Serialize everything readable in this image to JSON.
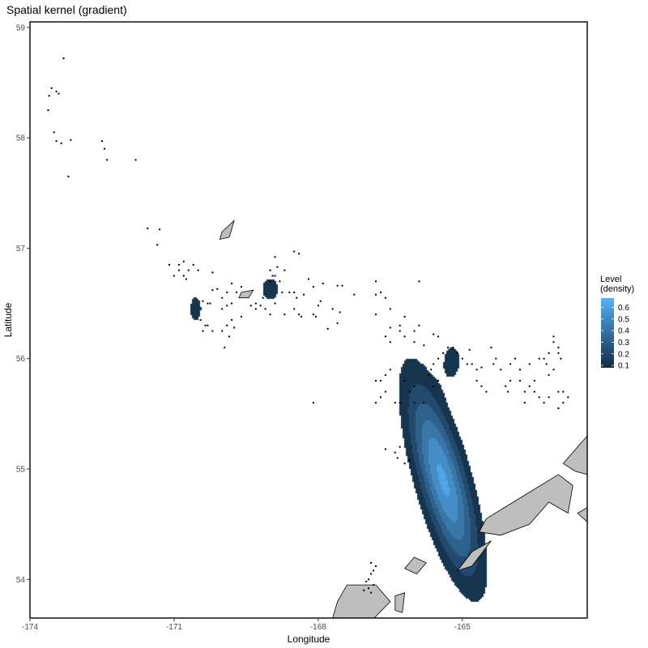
{
  "chart_data": {
    "type": "heatmap",
    "title": "Spatial kernel (gradient)",
    "xlabel": "Longitude",
    "ylabel": "Latitude",
    "xlim": [
      -174,
      -162.4
    ],
    "ylim": [
      53.65,
      59.05
    ],
    "x_ticks": [
      -174,
      -171,
      -168,
      -165
    ],
    "x_tick_labels": [
      "-174",
      "-171",
      "-168",
      "-165"
    ],
    "y_ticks": [
      54,
      55,
      56,
      57,
      58,
      59
    ],
    "y_tick_labels": [
      "54",
      "55",
      "56",
      "57",
      "58",
      "59"
    ],
    "grid": false,
    "legend": {
      "title_lines": [
        "Level",
        "(density)"
      ],
      "placement": "right",
      "levels": [
        0.1,
        0.2,
        0.3,
        0.4,
        0.5,
        0.6
      ],
      "level_labels": [
        "0.1",
        "0.2",
        "0.3",
        "0.4",
        "0.5",
        "0.6"
      ],
      "range": [
        0.08,
        0.68
      ]
    },
    "colors": {
      "low": "#132B43",
      "high": "#56B1F7",
      "land": "#bebebe",
      "points": "#000000"
    },
    "kernel_hotspots": [
      {
        "lon": -170.55,
        "lat": 56.45,
        "sx": 0.15,
        "sy": 0.14,
        "peak": 0.13
      },
      {
        "lon": -169.0,
        "lat": 56.63,
        "sx": 0.22,
        "sy": 0.13,
        "peak": 0.13
      },
      {
        "lon": -165.2,
        "lat": 55.98,
        "sx": 0.2,
        "sy": 0.16,
        "peak": 0.13
      },
      {
        "lon": -165.4,
        "lat": 54.9,
        "sx": 0.55,
        "sy": 0.52,
        "peak": 0.62,
        "rotation_deg": -38
      }
    ],
    "land_polygons": [
      [
        [
          -170.0,
          57.15
        ],
        [
          -169.75,
          57.25
        ],
        [
          -169.85,
          57.1
        ],
        [
          -170.05,
          57.08
        ]
      ],
      [
        [
          -169.6,
          56.6
        ],
        [
          -169.35,
          56.62
        ],
        [
          -169.45,
          56.55
        ],
        [
          -169.65,
          56.55
        ]
      ],
      [
        [
          -164.5,
          54.55
        ],
        [
          -163.0,
          54.95
        ],
        [
          -162.7,
          54.85
        ],
        [
          -162.8,
          54.6
        ],
        [
          -163.2,
          54.7
        ],
        [
          -163.6,
          54.5
        ],
        [
          -164.2,
          54.4
        ],
        [
          -164.65,
          54.43
        ]
      ],
      [
        [
          -162.9,
          55.05
        ],
        [
          -162.6,
          55.2
        ],
        [
          -162.4,
          55.3
        ],
        [
          -162.4,
          54.95
        ],
        [
          -162.65,
          54.98
        ]
      ],
      [
        [
          -164.8,
          54.25
        ],
        [
          -164.4,
          54.35
        ],
        [
          -164.8,
          54.12
        ],
        [
          -165.1,
          54.08
        ]
      ],
      [
        [
          -166.0,
          54.2
        ],
        [
          -165.75,
          54.15
        ],
        [
          -165.95,
          54.05
        ],
        [
          -166.2,
          54.1
        ]
      ],
      [
        [
          -167.4,
          53.95
        ],
        [
          -166.8,
          53.95
        ],
        [
          -166.5,
          53.8
        ],
        [
          -166.9,
          53.62
        ],
        [
          -167.7,
          53.65
        ],
        [
          -167.6,
          53.8
        ]
      ],
      [
        [
          -166.4,
          53.85
        ],
        [
          -166.2,
          53.88
        ],
        [
          -166.25,
          53.7
        ],
        [
          -166.4,
          53.72
        ]
      ],
      [
        [
          -162.6,
          54.6
        ],
        [
          -162.4,
          54.65
        ],
        [
          -162.4,
          54.52
        ]
      ]
    ],
    "points": [
      [
        -173.3,
        58.72
      ],
      [
        -173.55,
        58.45
      ],
      [
        -173.45,
        58.42
      ],
      [
        -173.4,
        58.4
      ],
      [
        -173.6,
        58.38
      ],
      [
        -173.62,
        58.25
      ],
      [
        -173.5,
        58.05
      ],
      [
        -173.45,
        57.97
      ],
      [
        -173.35,
        57.95
      ],
      [
        -173.15,
        57.98
      ],
      [
        -172.5,
        57.97
      ],
      [
        -172.45,
        57.9
      ],
      [
        -172.4,
        57.8
      ],
      [
        -171.8,
        57.8
      ],
      [
        -173.2,
        57.65
      ],
      [
        -171.55,
        57.18
      ],
      [
        -171.3,
        57.17
      ],
      [
        -171.35,
        57.03
      ],
      [
        -171.1,
        56.85
      ],
      [
        -170.9,
        56.85
      ],
      [
        -170.8,
        56.88
      ],
      [
        -170.6,
        56.85
      ],
      [
        -170.9,
        56.8
      ],
      [
        -170.7,
        56.8
      ],
      [
        -170.8,
        56.75
      ],
      [
        -171.0,
        56.75
      ],
      [
        -170.75,
        56.72
      ],
      [
        -170.5,
        56.8
      ],
      [
        -170.2,
        56.78
      ],
      [
        -170.2,
        56.62
      ],
      [
        -170.1,
        56.63
      ],
      [
        -170.0,
        56.55
      ],
      [
        -169.9,
        56.6
      ],
      [
        -169.8,
        56.68
      ],
      [
        -169.7,
        56.6
      ],
      [
        -169.6,
        56.65
      ],
      [
        -170.25,
        56.5
      ],
      [
        -170.4,
        56.52
      ],
      [
        -170.3,
        56.5
      ],
      [
        -169.9,
        56.48
      ],
      [
        -169.8,
        56.5
      ],
      [
        -170.0,
        56.45
      ],
      [
        -169.8,
        56.35
      ],
      [
        -169.9,
        56.3
      ],
      [
        -169.75,
        56.28
      ],
      [
        -170.45,
        56.35
      ],
      [
        -170.3,
        56.3
      ],
      [
        -170.4,
        56.25
      ],
      [
        -170.35,
        56.3
      ],
      [
        -170.2,
        56.25
      ],
      [
        -170.0,
        56.25
      ],
      [
        -169.85,
        56.2
      ],
      [
        -169.95,
        56.1
      ],
      [
        -169.6,
        56.38
      ],
      [
        -169.4,
        56.48
      ],
      [
        -169.3,
        56.5
      ],
      [
        -169.2,
        56.48
      ],
      [
        -169.1,
        56.45
      ],
      [
        -169.15,
        56.55
      ],
      [
        -169.3,
        56.45
      ],
      [
        -169.0,
        56.8
      ],
      [
        -168.95,
        56.75
      ],
      [
        -168.9,
        56.75
      ],
      [
        -168.85,
        56.83
      ],
      [
        -168.7,
        56.8
      ],
      [
        -168.8,
        56.7
      ],
      [
        -169.0,
        56.7
      ],
      [
        -168.9,
        56.92
      ],
      [
        -168.5,
        56.97
      ],
      [
        -168.4,
        56.95
      ],
      [
        -168.75,
        56.6
      ],
      [
        -168.6,
        56.6
      ],
      [
        -168.5,
        56.6
      ],
      [
        -168.45,
        56.55
      ],
      [
        -168.5,
        56.45
      ],
      [
        -168.7,
        56.4
      ],
      [
        -168.9,
        56.5
      ],
      [
        -169.0,
        56.4
      ],
      [
        -168.4,
        56.4
      ],
      [
        -168.35,
        56.38
      ],
      [
        -168.1,
        56.4
      ],
      [
        -168.05,
        56.38
      ],
      [
        -168.0,
        56.48
      ],
      [
        -167.95,
        56.52
      ],
      [
        -168.3,
        56.58
      ],
      [
        -168.2,
        56.72
      ],
      [
        -168.1,
        56.65
      ],
      [
        -167.9,
        56.68
      ],
      [
        -167.6,
        56.66
      ],
      [
        -167.5,
        56.66
      ],
      [
        -167.55,
        56.42
      ],
      [
        -167.7,
        56.45
      ],
      [
        -167.6,
        56.32
      ],
      [
        -167.8,
        56.27
      ],
      [
        -167.25,
        56.58
      ],
      [
        -166.8,
        56.7
      ],
      [
        -166.7,
        56.6
      ],
      [
        -166.8,
        56.58
      ],
      [
        -166.6,
        56.55
      ],
      [
        -166.5,
        56.45
      ],
      [
        -166.8,
        56.4
      ],
      [
        -166.3,
        56.3
      ],
      [
        -166.2,
        56.38
      ],
      [
        -165.9,
        56.7
      ],
      [
        -166.5,
        56.28
      ],
      [
        -166.3,
        56.25
      ],
      [
        -166.2,
        56.2
      ],
      [
        -166.5,
        56.15
      ],
      [
        -166.6,
        56.2
      ],
      [
        -166.0,
        56.25
      ],
      [
        -165.9,
        56.3
      ],
      [
        -166.0,
        56.15
      ],
      [
        -165.8,
        56.12
      ],
      [
        -165.6,
        56.22
      ],
      [
        -165.5,
        56.2
      ],
      [
        -165.3,
        56.1
      ],
      [
        -165.4,
        56.05
      ],
      [
        -165.5,
        56.0
      ],
      [
        -165.6,
        55.95
      ],
      [
        -165.65,
        55.9
      ],
      [
        -165.7,
        55.85
      ],
      [
        -165.5,
        55.8
      ],
      [
        -165.6,
        55.75
      ],
      [
        -165.2,
        56.1
      ],
      [
        -165.1,
        56.05
      ],
      [
        -165.0,
        56.0
      ],
      [
        -164.85,
        56.08
      ],
      [
        -164.9,
        55.95
      ],
      [
        -164.8,
        55.95
      ],
      [
        -164.7,
        55.9
      ],
      [
        -164.6,
        55.92
      ],
      [
        -164.7,
        55.8
      ],
      [
        -164.6,
        55.75
      ],
      [
        -164.5,
        55.7
      ],
      [
        -166.5,
        55.9
      ],
      [
        -166.6,
        55.85
      ],
      [
        -166.7,
        55.8
      ],
      [
        -166.8,
        55.8
      ],
      [
        -166.6,
        55.7
      ],
      [
        -166.7,
        55.65
      ],
      [
        -166.8,
        55.6
      ],
      [
        -166.2,
        55.8
      ],
      [
        -166.0,
        55.75
      ],
      [
        -166.1,
        55.7
      ],
      [
        -166.3,
        55.6
      ],
      [
        -166.4,
        55.6
      ],
      [
        -166.0,
        55.6
      ],
      [
        -165.8,
        55.6
      ],
      [
        -164.4,
        56.1
      ],
      [
        -164.3,
        56.0
      ],
      [
        -164.35,
        55.95
      ],
      [
        -164.2,
        55.9
      ],
      [
        -164.0,
        55.95
      ],
      [
        -163.9,
        56.0
      ],
      [
        -163.8,
        55.9
      ],
      [
        -163.6,
        55.95
      ],
      [
        -163.8,
        55.8
      ],
      [
        -163.6,
        55.75
      ],
      [
        -163.7,
        55.7
      ],
      [
        -163.5,
        55.7
      ],
      [
        -163.7,
        55.6
      ],
      [
        -163.4,
        55.65
      ],
      [
        -163.3,
        55.6
      ],
      [
        -163.2,
        55.65
      ],
      [
        -164.0,
        55.8
      ],
      [
        -164.1,
        55.75
      ],
      [
        -164.05,
        55.7
      ],
      [
        -163.1,
        56.15
      ],
      [
        -163.2,
        56.05
      ],
      [
        -163.3,
        56.0
      ],
      [
        -163.25,
        55.95
      ],
      [
        -163.1,
        55.9
      ],
      [
        -163.2,
        55.85
      ],
      [
        -163.4,
        56.0
      ],
      [
        -163.0,
        55.7
      ],
      [
        -162.9,
        55.7
      ],
      [
        -162.8,
        55.65
      ],
      [
        -162.9,
        55.6
      ],
      [
        -163.0,
        55.55
      ],
      [
        -163.1,
        56.2
      ],
      [
        -163.0,
        56.1
      ],
      [
        -163.0,
        56.05
      ],
      [
        -162.95,
        56.0
      ],
      [
        -163.5,
        55.8
      ],
      [
        -166.6,
        55.18
      ],
      [
        -166.4,
        55.15
      ],
      [
        -166.3,
        55.2
      ],
      [
        -166.35,
        55.1
      ],
      [
        -166.2,
        55.05
      ],
      [
        -166.1,
        55.08
      ],
      [
        -168.1,
        55.6
      ],
      [
        -166.9,
        54.15
      ],
      [
        -166.8,
        54.12
      ],
      [
        -166.85,
        54.08
      ],
      [
        -166.9,
        54.05
      ],
      [
        -166.95,
        54.0
      ],
      [
        -167.0,
        53.98
      ],
      [
        -166.85,
        53.95
      ],
      [
        -166.95,
        53.92
      ],
      [
        -167.05,
        53.9
      ],
      [
        -166.9,
        53.88
      ]
    ]
  }
}
